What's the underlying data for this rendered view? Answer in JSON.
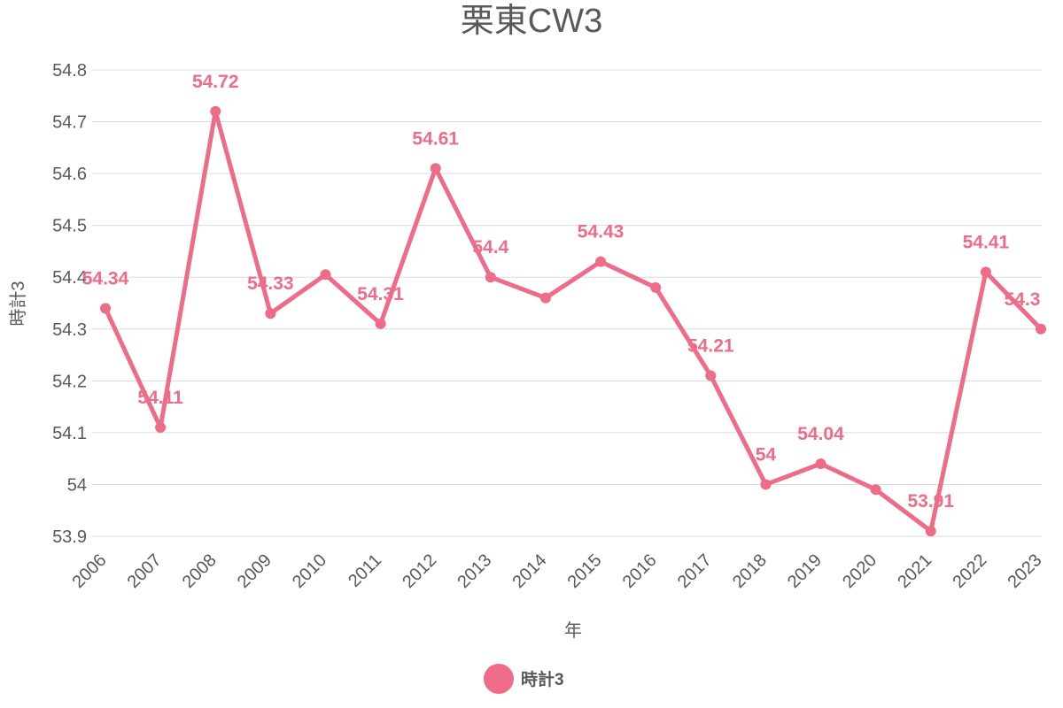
{
  "chart_data": {
    "type": "line",
    "title": "栗東CW3",
    "xlabel": "年",
    "ylabel": "時計3",
    "categories": [
      "2006",
      "2007",
      "2008",
      "2009",
      "2010",
      "2011",
      "2012",
      "2013",
      "2014",
      "2015",
      "2016",
      "2017",
      "2018",
      "2019",
      "2020",
      "2021",
      "2022",
      "2023"
    ],
    "series": [
      {
        "name": "時計3",
        "color": "#ef6c88",
        "values": [
          54.34,
          54.11,
          54.72,
          54.33,
          54.405,
          54.31,
          54.61,
          54.4,
          54.36,
          54.43,
          54.38,
          54.21,
          54.0,
          54.04,
          53.99,
          53.91,
          54.41,
          54.3
        ],
        "data_labels": [
          "54.34",
          "54.11",
          "54.72",
          "54.33",
          "",
          "54.31",
          "54.61",
          "54.4",
          "",
          "54.43",
          "",
          "54.21",
          "54",
          "54.04",
          "",
          "53.91",
          "54.41",
          "54.3"
        ]
      }
    ],
    "ylim": [
      53.9,
      54.8
    ],
    "yticks": [
      "53.9",
      "54",
      "54.1",
      "54.2",
      "54.3",
      "54.4",
      "54.5",
      "54.6",
      "54.7",
      "54.8"
    ],
    "grid": true,
    "legend_position": "bottom"
  }
}
